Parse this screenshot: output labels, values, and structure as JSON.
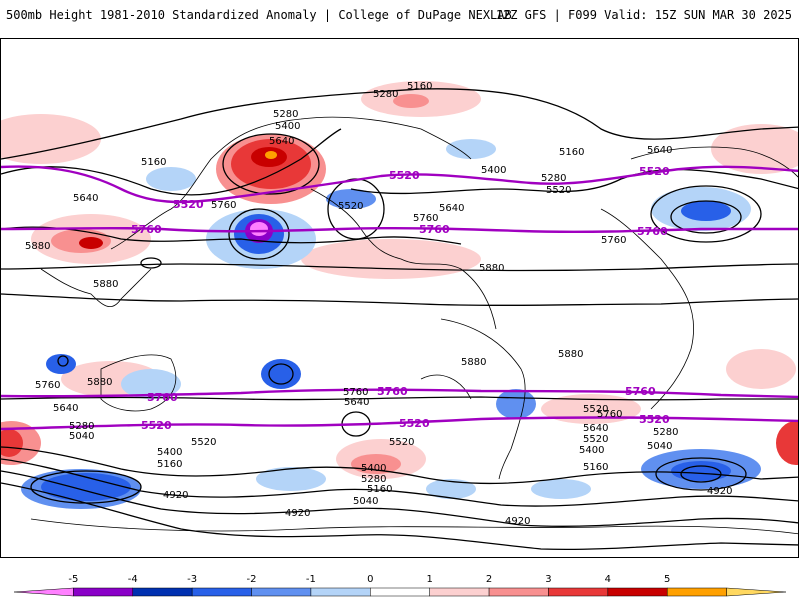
{
  "header": {
    "title_left": "500mb Height 1981-2010 Standardized Anomaly | College of DuPage NEXLAB",
    "title_right": "12Z GFS | F099 Valid: 15Z SUN MAR 30 2025"
  },
  "map": {
    "contour_labels": {
      "c5160a": "5160",
      "c5280a": "5280",
      "c5280b": "5280",
      "c5400a": "5400",
      "c5640a": "5640",
      "c5160b": "5160",
      "c5400b": "5400",
      "c5280c": "5280",
      "c5520a": "5520",
      "c5160c": "5160",
      "c5640b": "5640",
      "c5640c": "5640",
      "c5760a": "5760",
      "c5760b": "5760",
      "c5880a": "5880",
      "c5880b": "5880",
      "c5880c": "5880",
      "c5880d": "5880",
      "c5880e": "5880",
      "c5760c": "5760",
      "c5880f": "5880",
      "c5640d": "5640",
      "c5280d": "5280",
      "c5040a": "5040",
      "c5520b": "5520",
      "c5400c": "5400",
      "c5160d": "5160",
      "c5760d": "5760",
      "c5640e": "5640",
      "c5520c": "5520",
      "c5400d": "5400",
      "c5280e": "5280",
      "c5160e": "5160",
      "c5040b": "5040",
      "c5520d": "5520",
      "c5760e": "5760",
      "c5640f": "5640",
      "c5520e": "5520",
      "c5400e": "5400",
      "c5160f": "5160",
      "c5280f": "5280",
      "c5040c": "5040",
      "c4920a": "4920",
      "c4920b": "4920",
      "c4920c": "4920",
      "c4920d": "4920",
      "c5520f": "5520",
      "c5760f": "5760",
      "c5640g": "5640"
    },
    "highlight_labels": {
      "p5520a": "5520",
      "p5760a": "5760",
      "p5520b": "5520",
      "p5760b": "5760",
      "p5520c": "5520",
      "p5760c": "5760",
      "p5760d": "5760",
      "p5520d": "5520",
      "p5760e": "5760",
      "p5520e": "5520",
      "p5520f": "5520",
      "p5760f": "5760"
    },
    "highlight_color": "#a000c0"
  },
  "colorbar": {
    "ticks": [
      "-5",
      "-4",
      "-3",
      "-2",
      "-1",
      "0",
      "1",
      "2",
      "3",
      "4",
      "5"
    ],
    "colors": [
      "#ff80ff",
      "#8a00c8",
      "#0030b0",
      "#2860e8",
      "#6090f0",
      "#b4d4f8",
      "#ffffff",
      "#fcd0d0",
      "#f89090",
      "#e83838",
      "#c80000",
      "#ffa000",
      "#ffd860"
    ]
  }
}
